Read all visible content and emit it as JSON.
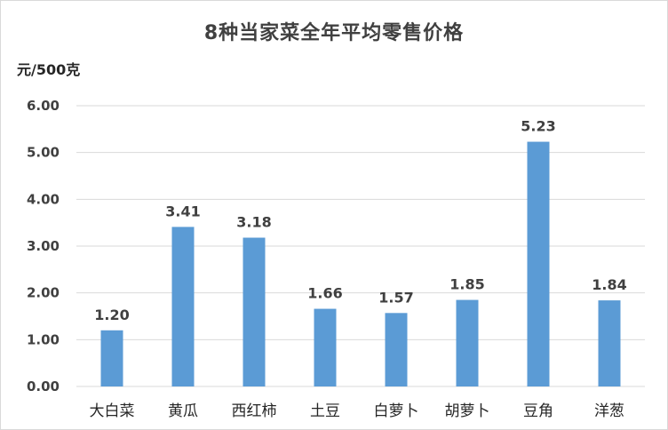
{
  "chart_data": {
    "type": "bar",
    "title": "8种当家菜全年平均零售价格",
    "ylabel": "元/500克",
    "xlabel": "",
    "categories": [
      "大白菜",
      "黄瓜",
      "西红柿",
      "土豆",
      "白萝卜",
      "胡萝卜",
      "豆角",
      "洋葱"
    ],
    "values": [
      1.2,
      3.41,
      3.18,
      1.66,
      1.57,
      1.85,
      5.23,
      1.84
    ],
    "data_labels": [
      "1.20",
      "3.41",
      "3.18",
      "1.66",
      "1.57",
      "1.85",
      "5.23",
      "1.84"
    ],
    "ylim": [
      0,
      6
    ],
    "yticks": [
      0,
      1,
      2,
      3,
      4,
      5,
      6
    ],
    "ytick_labels": [
      "0.00",
      "1.00",
      "2.00",
      "3.00",
      "4.00",
      "5.00",
      "6.00"
    ],
    "grid": true,
    "legend": "none",
    "bar_color": "#5b9bd5",
    "grid_color": "#d9d9d9"
  }
}
